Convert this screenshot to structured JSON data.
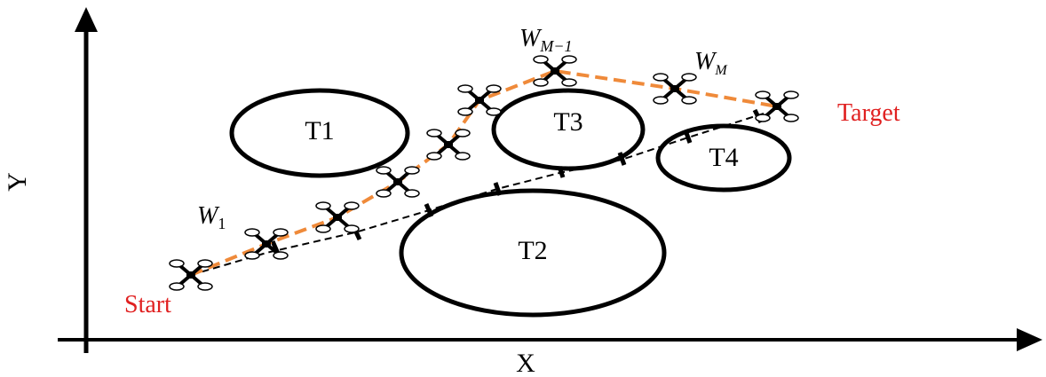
{
  "axes": {
    "x_label": "X",
    "y_label": "Y"
  },
  "obstacles": [
    {
      "label": "T1"
    },
    {
      "label": "T2"
    },
    {
      "label": "T3"
    },
    {
      "label": "T4"
    }
  ],
  "waypoints": [
    {
      "base": "W",
      "sub": "1"
    },
    {
      "base": "W",
      "sub": "M−1"
    },
    {
      "base": "W",
      "sub": "M"
    }
  ],
  "start_label": "Start",
  "target_label": "Target"
}
